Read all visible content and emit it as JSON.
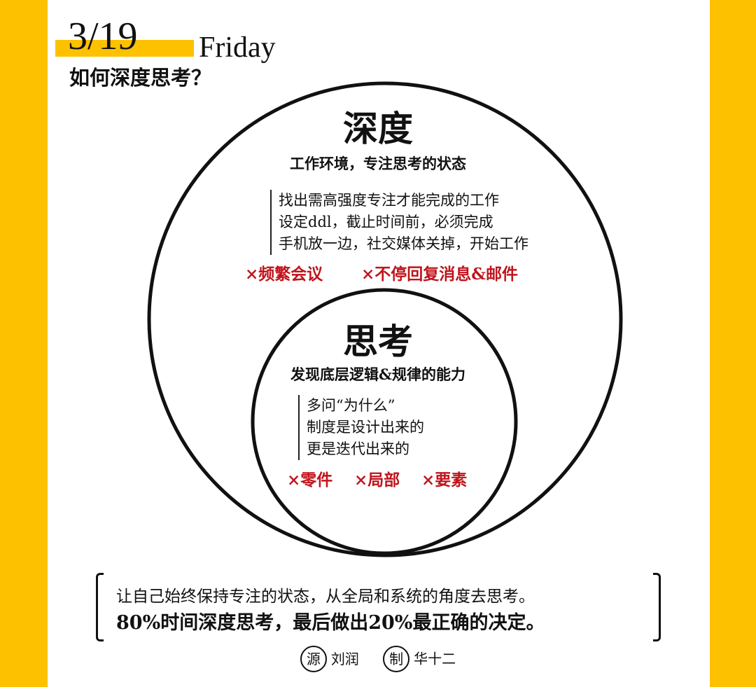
{
  "header": {
    "date": "3/19",
    "weekday": "Friday",
    "question": "如何深度思考？"
  },
  "outer": {
    "title": "深度",
    "subtitle": "工作环境，专注思考的状态",
    "items": [
      "找出需高强度专注才能完成的工作",
      "设定ddl，截止时间前，必须完成",
      "手机放一边，社交媒体关掉，开始工作"
    ],
    "avoid": [
      "×频繁会议",
      "×不停回复消息&邮件"
    ]
  },
  "inner": {
    "title": "思考",
    "subtitle": "发现底层逻辑&规律的能力",
    "items": [
      "多问“为什么”",
      "制度是设计出来的",
      "更是迭代出来的"
    ],
    "avoid": [
      "×零件",
      "×局部",
      "×要素"
    ]
  },
  "quote": {
    "line1": "让自己始终保持专注的状态，从全局和系统的角度去思考。",
    "line2": "80%时间深度思考，最后做出20%最正确的决定。"
  },
  "credits": {
    "source_badge": "源",
    "source_name": "刘润",
    "maker_badge": "制",
    "maker_name": "华十二"
  },
  "colors": {
    "accent": "#FDC100",
    "warning": "#C0141C",
    "ink": "#111111"
  }
}
